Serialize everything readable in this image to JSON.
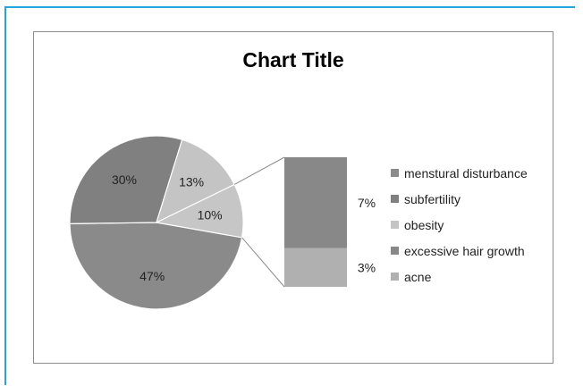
{
  "chart_data": {
    "type": "pie",
    "subtype": "pie-of-pie (bar of pie)",
    "title": "Chart Title",
    "categories": [
      "menstural disturbance",
      "subfertility",
      "obesity",
      "excessive hair growth",
      "acne"
    ],
    "values": [
      47,
      30,
      13,
      7,
      3
    ],
    "data_labels": [
      "47%",
      "30%",
      "13%",
      "7%",
      "3%"
    ],
    "other_label": "10%",
    "secondary_categories": [
      "excessive hair growth",
      "acne"
    ],
    "colors": [
      "#8a8a8a",
      "#808080",
      "#c4c4c4",
      "#888888",
      "#b0b0b0"
    ],
    "other_color": "#c6c6c6",
    "legend": {
      "placement": "right"
    },
    "grid": false
  }
}
